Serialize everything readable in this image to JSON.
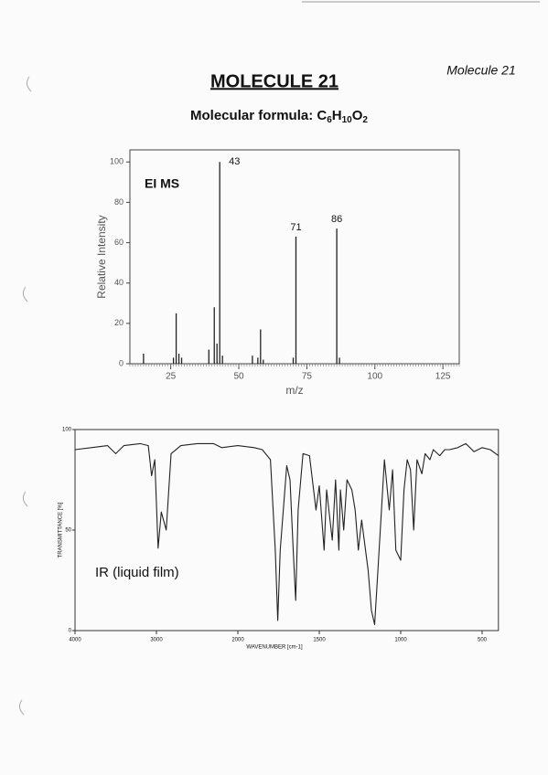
{
  "header": {
    "title": "MOLECULE 21",
    "corner_note": "Molecule 21",
    "formula": {
      "label": "Molecular formula:",
      "elements": [
        {
          "symbol": "C",
          "count": "6"
        },
        {
          "symbol": "H",
          "count": "10"
        },
        {
          "symbol": "O",
          "count": "2"
        }
      ]
    }
  },
  "chart_data": [
    {
      "type": "stem",
      "label": "EI MS",
      "x_label": "m/z",
      "y_label": "Relative Intensity",
      "color": "#222222",
      "x": [
        15,
        26,
        27,
        28,
        29,
        39,
        41,
        42,
        43,
        44,
        55,
        57,
        58,
        59,
        70,
        71,
        86,
        87
      ],
      "values": [
        5,
        3,
        25,
        5,
        3,
        7,
        28,
        10,
        100,
        4,
        4,
        3,
        17,
        2,
        3,
        63,
        67,
        3
      ],
      "annotations": [
        {
          "label": "43",
          "x": 43
        },
        {
          "label": "71",
          "x": 71
        },
        {
          "label": "86",
          "x": 86
        }
      ],
      "xlim": [
        10,
        131
      ],
      "ylim": [
        0,
        106
      ],
      "xticks": [
        25,
        50,
        75,
        100,
        125
      ],
      "yticks": [
        0,
        20,
        40,
        60,
        80,
        100
      ]
    },
    {
      "type": "line",
      "label": "IR (liquid film)",
      "x_label": "WAVENUMBER [cm-1]",
      "y_label": "TRANSMITTANCE [%]",
      "color": "#222222",
      "x": [
        4000,
        3800,
        3600,
        3500,
        3400,
        3200,
        3100,
        3060,
        3020,
        2980,
        2940,
        2880,
        2820,
        2700,
        2500,
        2300,
        2200,
        2000,
        1900,
        1850,
        1800,
        1770,
        1755,
        1740,
        1700,
        1680,
        1660,
        1645,
        1630,
        1600,
        1560,
        1520,
        1500,
        1470,
        1455,
        1420,
        1400,
        1380,
        1370,
        1350,
        1330,
        1300,
        1280,
        1260,
        1240,
        1200,
        1180,
        1160,
        1140,
        1100,
        1070,
        1050,
        1030,
        1000,
        980,
        960,
        940,
        920,
        900,
        870,
        850,
        820,
        800,
        760,
        730,
        700,
        650,
        600,
        550,
        500,
        450,
        400
      ],
      "values": [
        90,
        91,
        92,
        88,
        92,
        93,
        92,
        77,
        85,
        41,
        59,
        50,
        88,
        92,
        93,
        93,
        91,
        92,
        91,
        90,
        85,
        40,
        5,
        40,
        82,
        75,
        40,
        15,
        60,
        88,
        87,
        60,
        72,
        40,
        70,
        45,
        75,
        40,
        70,
        50,
        75,
        70,
        60,
        40,
        55,
        30,
        10,
        3,
        30,
        85,
        60,
        80,
        40,
        35,
        70,
        85,
        80,
        50,
        85,
        78,
        88,
        85,
        90,
        87,
        90,
        90,
        91,
        93,
        89,
        91,
        90,
        87
      ],
      "xlim": [
        4000,
        400
      ],
      "ylim": [
        0,
        100
      ],
      "xticks": [
        4000,
        3000,
        2000,
        1500,
        1000,
        500
      ],
      "yticks": [
        0,
        50,
        100
      ]
    }
  ]
}
